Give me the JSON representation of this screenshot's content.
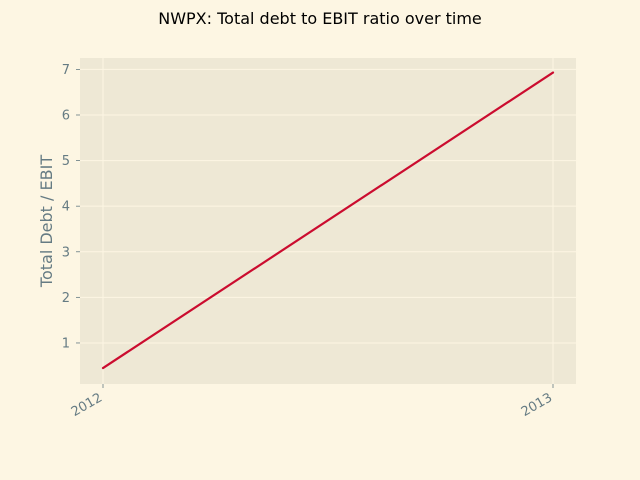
{
  "colors": {
    "figure_background": "#fdf6e3",
    "plot_background": "#eee8d5",
    "grid": "#fdf6e3",
    "line": "#cb0c2f",
    "tick_text": "#657b83",
    "title_text": "#000000"
  },
  "chart_data": {
    "type": "line",
    "title": "NWPX: Total debt to EBIT ratio over time",
    "xlabel": "",
    "ylabel": "Total Debt / EBIT",
    "x": [
      "2012",
      "2013"
    ],
    "series": [
      {
        "values": [
          0.45,
          6.93
        ]
      }
    ],
    "xlim": [
      "2012",
      "2013"
    ],
    "ylim": [
      0.1,
      7.25
    ],
    "yticks": [
      1,
      2,
      3,
      4,
      5,
      6,
      7
    ],
    "grid": true,
    "legend": "none"
  }
}
